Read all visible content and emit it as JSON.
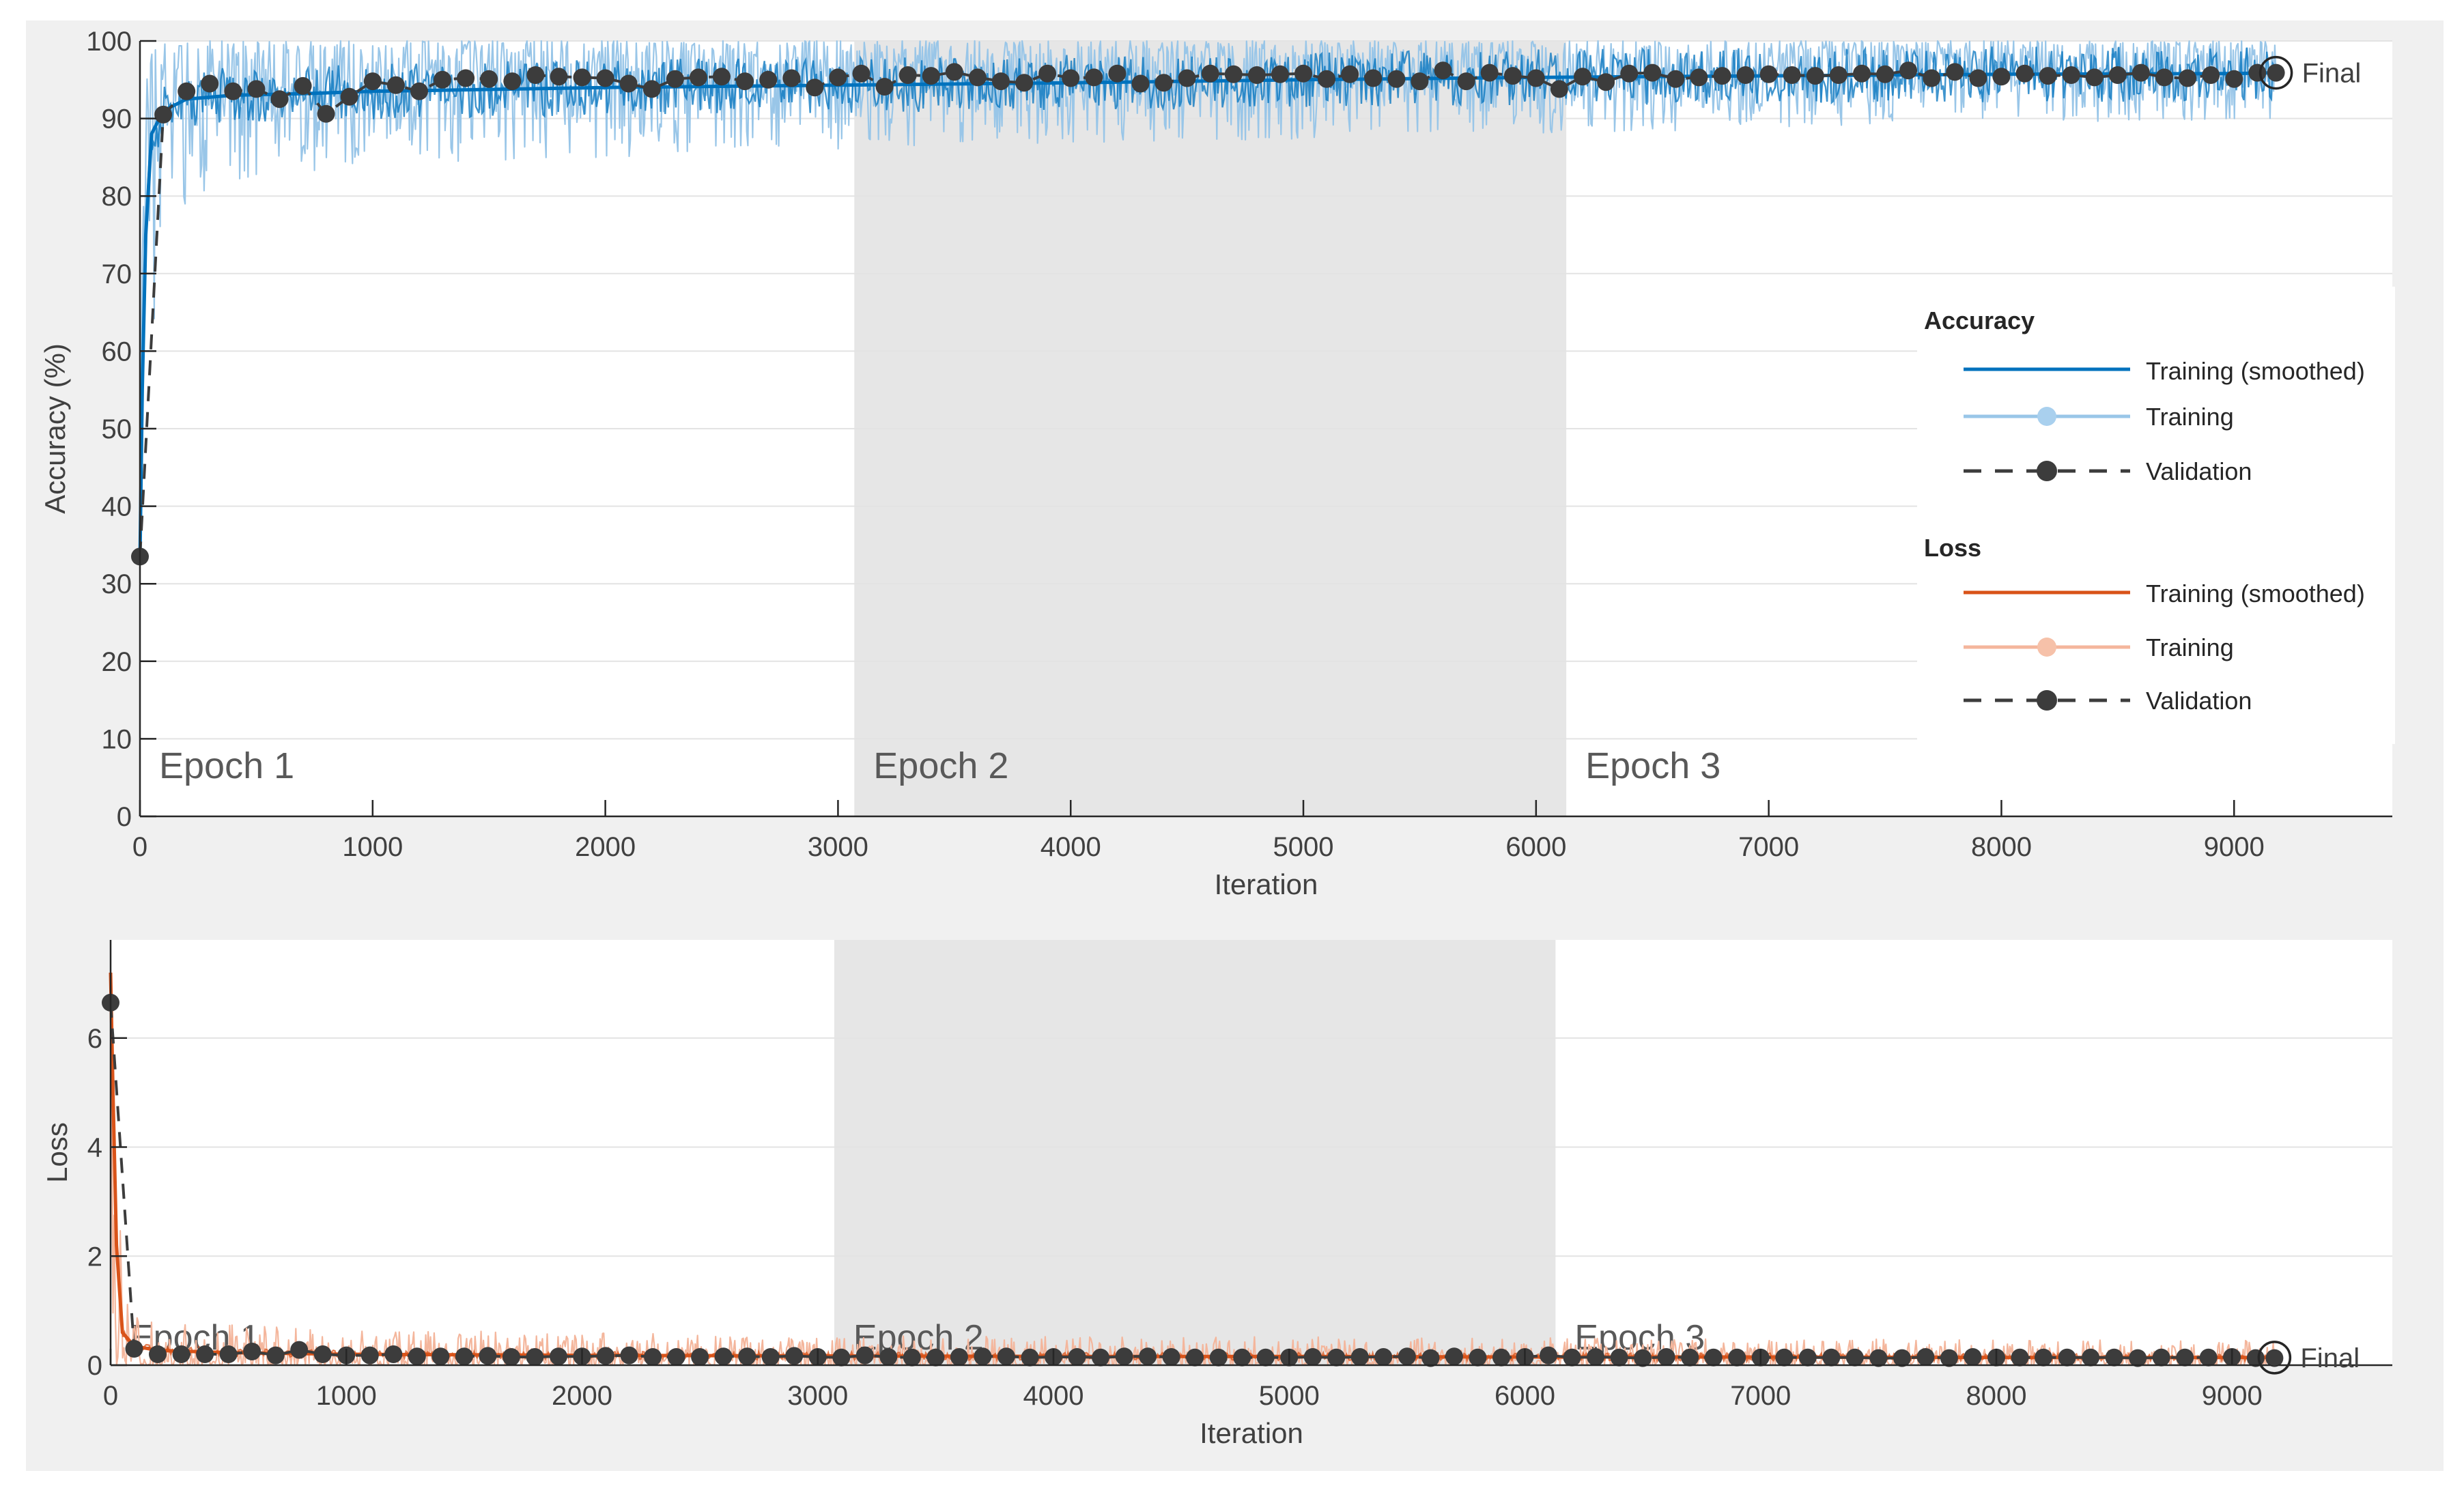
{
  "colors": {
    "figure_bg": "#f0f0f0",
    "axes_bg": "#ffffff",
    "epoch_shade": "#e6e6e6",
    "grid": "#e3e3e3",
    "axis_text": "#404040",
    "accuracy_smoothed": "#0072bd",
    "accuracy_raw": "#99c6e8",
    "loss_smoothed": "#d95319",
    "loss_raw": "#f4b69c",
    "validation": "#3c3c3c",
    "epoch_label": "#595959"
  },
  "chart_data": [
    {
      "type": "line",
      "panel": "accuracy",
      "xlabel": "Iteration",
      "ylabel": "Accuracy (%)",
      "xlim": [
        0,
        9680
      ],
      "ylim": [
        0,
        100
      ],
      "xticks": [
        0,
        1000,
        2000,
        3000,
        4000,
        5000,
        6000,
        7000,
        8000,
        9000
      ],
      "yticks": [
        0,
        10,
        20,
        30,
        40,
        50,
        60,
        70,
        80,
        90,
        100
      ],
      "grid": true,
      "epochs": [
        {
          "label": "Epoch 1",
          "start": 0,
          "end": 3070,
          "shaded": false
        },
        {
          "label": "Epoch 2",
          "start": 3070,
          "end": 6130,
          "shaded": true
        },
        {
          "label": "Epoch 3",
          "start": 6130,
          "end": 9680,
          "shaded": false
        }
      ],
      "final_label": "Final",
      "final_point": {
        "x": 9180,
        "y": 95.9
      },
      "series": [
        {
          "name": "Training (smoothed)",
          "style": "smoothed",
          "x": [
            0,
            10,
            25,
            50,
            100,
            200,
            400,
            700,
            1000,
            2000,
            3000,
            4000,
            5000,
            6000,
            7000,
            8000,
            9000,
            9180
          ],
          "y": [
            33,
            55,
            75,
            88,
            91,
            92.5,
            93,
            93.2,
            93.5,
            94,
            94.3,
            94.6,
            95,
            95.3,
            95.5,
            95.7,
            95.8,
            95.9
          ]
        },
        {
          "name": "Training",
          "style": "raw",
          "x_start": 0,
          "x_end": 9180,
          "lower": [
            [
              0,
              30
            ],
            [
              100,
              78
            ],
            [
              500,
              82
            ],
            [
              1000,
              84
            ],
            [
              3000,
              86
            ],
            [
              6000,
              88
            ],
            [
              9180,
              90
            ]
          ],
          "upper": 100
        },
        {
          "name": "Validation",
          "style": "validation",
          "x": [
            0,
            100,
            200,
            300,
            400,
            500,
            600,
            700,
            800,
            900,
            1000,
            1100,
            1200,
            1300,
            1400,
            1500,
            1600,
            1700,
            1800,
            1900,
            2000,
            2100,
            2200,
            2300,
            2400,
            2500,
            2600,
            2700,
            2800,
            2900,
            3000,
            3100,
            3200,
            3300,
            3400,
            3500,
            3600,
            3700,
            3800,
            3900,
            4000,
            4100,
            4200,
            4300,
            4400,
            4500,
            4600,
            4700,
            4800,
            4900,
            5000,
            5100,
            5200,
            5300,
            5400,
            5500,
            5600,
            5700,
            5800,
            5900,
            6000,
            6100,
            6200,
            6300,
            6400,
            6500,
            6600,
            6700,
            6800,
            6900,
            7000,
            7100,
            7200,
            7300,
            7400,
            7500,
            7600,
            7700,
            7800,
            7900,
            8000,
            8100,
            8200,
            8300,
            8400,
            8500,
            8600,
            8700,
            8800,
            8900,
            9000,
            9100,
            9180
          ],
          "y": [
            33.5,
            90.5,
            93.5,
            94.5,
            93.5,
            93.8,
            92.5,
            94.2,
            90.6,
            92.8,
            94.8,
            94.3,
            93.5,
            95,
            95.2,
            95.1,
            94.8,
            95.6,
            95.4,
            95.3,
            95.2,
            94.5,
            93.8,
            95.1,
            95.3,
            95.4,
            94.8,
            95,
            95.2,
            94,
            95.3,
            95.8,
            94.1,
            95.6,
            95.5,
            96,
            95.3,
            94.8,
            94.6,
            95.8,
            95.2,
            95.3,
            95.8,
            94.5,
            94.6,
            95.2,
            95.8,
            95.7,
            95.6,
            95.7,
            95.8,
            95.1,
            95.7,
            95.2,
            95.1,
            94.8,
            96.2,
            94.8,
            95.9,
            95.5,
            95.2,
            93.8,
            95.4,
            94.7,
            95.8,
            95.9,
            95.1,
            95.3,
            95.5,
            95.6,
            95.7,
            95.6,
            95.5,
            95.6,
            95.8,
            95.7,
            96.2,
            95.2,
            96,
            95.2,
            95.4,
            95.8,
            95.5,
            95.6,
            95.3,
            95.6,
            95.9,
            95.3,
            95.2,
            95.6,
            95.1,
            95.9,
            95.9
          ]
        }
      ]
    },
    {
      "type": "line",
      "panel": "loss",
      "xlabel": "Iteration",
      "ylabel": "Loss",
      "xlim": [
        0,
        9680
      ],
      "ylim": [
        0,
        7.8
      ],
      "xticks": [
        0,
        1000,
        2000,
        3000,
        4000,
        5000,
        6000,
        7000,
        8000,
        9000
      ],
      "yticks": [
        0,
        2,
        4,
        6
      ],
      "grid": true,
      "epochs": [
        {
          "label": "Epoch 1",
          "start": 0,
          "end": 3070,
          "shaded": false
        },
        {
          "label": "Epoch 2",
          "start": 3070,
          "end": 6130,
          "shaded": true
        },
        {
          "label": "Epoch 3",
          "start": 6130,
          "end": 9680,
          "shaded": false
        }
      ],
      "final_label": "Final",
      "final_point": {
        "x": 9180,
        "y": 0.14
      },
      "series": [
        {
          "name": "Training (smoothed)",
          "style": "smoothed",
          "x": [
            0,
            10,
            25,
            50,
            100,
            200,
            500,
            1000,
            2000,
            3000,
            4000,
            5000,
            6000,
            7000,
            8000,
            9000,
            9180
          ],
          "y": [
            7.2,
            5,
            2.2,
            0.6,
            0.35,
            0.27,
            0.23,
            0.2,
            0.18,
            0.17,
            0.16,
            0.16,
            0.15,
            0.15,
            0.14,
            0.14,
            0.14
          ]
        },
        {
          "name": "Training",
          "style": "raw",
          "x_start": 0,
          "x_end": 9180,
          "lower": 0,
          "upper": [
            [
              0,
              7.5
            ],
            [
              60,
              1.2
            ],
            [
              150,
              0.8
            ],
            [
              1000,
              0.65
            ],
            [
              3000,
              0.55
            ],
            [
              6000,
              0.5
            ],
            [
              9180,
              0.45
            ]
          ]
        },
        {
          "name": "Validation",
          "style": "validation",
          "x": [
            0,
            100,
            200,
            300,
            400,
            500,
            600,
            700,
            800,
            900,
            1000,
            1100,
            1200,
            1300,
            1400,
            1500,
            1600,
            1700,
            1800,
            1900,
            2000,
            2100,
            2200,
            2300,
            2400,
            2500,
            2600,
            2700,
            2800,
            2900,
            3000,
            3100,
            3200,
            3300,
            3400,
            3500,
            3600,
            3700,
            3800,
            3900,
            4000,
            4100,
            4200,
            4300,
            4400,
            4500,
            4600,
            4700,
            4800,
            4900,
            5000,
            5100,
            5200,
            5300,
            5400,
            5500,
            5600,
            5700,
            5800,
            5900,
            6000,
            6100,
            6200,
            6300,
            6400,
            6500,
            6600,
            6700,
            6800,
            6900,
            7000,
            7100,
            7200,
            7300,
            7400,
            7500,
            7600,
            7700,
            7800,
            7900,
            8000,
            8100,
            8200,
            8300,
            8400,
            8500,
            8600,
            8700,
            8800,
            8900,
            9000,
            9100,
            9180
          ],
          "y": [
            6.65,
            0.3,
            0.2,
            0.2,
            0.2,
            0.2,
            0.25,
            0.18,
            0.28,
            0.2,
            0.18,
            0.18,
            0.2,
            0.16,
            0.16,
            0.16,
            0.17,
            0.15,
            0.15,
            0.16,
            0.16,
            0.17,
            0.18,
            0.15,
            0.15,
            0.15,
            0.16,
            0.16,
            0.15,
            0.17,
            0.15,
            0.14,
            0.18,
            0.15,
            0.14,
            0.14,
            0.15,
            0.16,
            0.16,
            0.14,
            0.15,
            0.15,
            0.14,
            0.16,
            0.16,
            0.15,
            0.14,
            0.14,
            0.14,
            0.14,
            0.14,
            0.15,
            0.14,
            0.15,
            0.15,
            0.16,
            0.13,
            0.16,
            0.14,
            0.14,
            0.15,
            0.18,
            0.14,
            0.15,
            0.14,
            0.13,
            0.15,
            0.14,
            0.14,
            0.14,
            0.14,
            0.14,
            0.14,
            0.14,
            0.14,
            0.13,
            0.13,
            0.15,
            0.13,
            0.15,
            0.14,
            0.14,
            0.14,
            0.14,
            0.14,
            0.14,
            0.13,
            0.14,
            0.14,
            0.14,
            0.15,
            0.13,
            0.13
          ]
        }
      ]
    }
  ],
  "legend": {
    "accuracy_title": "Accuracy",
    "loss_title": "Loss",
    "acc_smoothed_label": "Training (smoothed)",
    "acc_training_label": "Training",
    "acc_validation_label": "Validation",
    "loss_smoothed_label": "Training (smoothed)",
    "loss_training_label": "Training",
    "loss_validation_label": "Validation"
  }
}
